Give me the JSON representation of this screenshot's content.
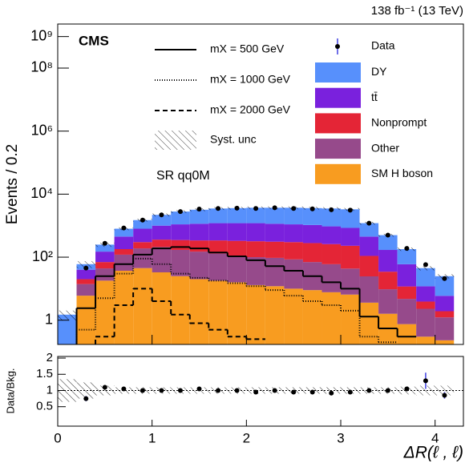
{
  "chart_data": {
    "type": "stacked_histogram",
    "cms_label": "CMS",
    "lumi_label": "138 fb⁻¹ (13 TeV)",
    "region_label": "SR qq0M",
    "x_label": "ΔR(ℓ , ℓ)",
    "y_label": "Events / 0.2",
    "ratio_y_label": "Data/Bkg.",
    "log_y": true,
    "bins": [
      0,
      0.2,
      0.4,
      0.6,
      0.8,
      1.0,
      1.2,
      1.4,
      1.6,
      1.8,
      2.0,
      2.2,
      2.4,
      2.6,
      2.8,
      3.0,
      3.2,
      3.4,
      3.6,
      3.8,
      4.0,
      4.2
    ],
    "xlim": [
      0,
      4.3
    ],
    "xticks": [
      0,
      1,
      2,
      3,
      4
    ],
    "ylim": [
      0.17,
      2500000000
    ],
    "yticks": [
      1,
      {
        "value": 100,
        "label": "10²"
      },
      {
        "value": 10000,
        "label": "10⁴"
      },
      {
        "value": 1000000,
        "label": "10⁶"
      },
      {
        "value": 100000000,
        "label": "10⁸"
      },
      {
        "value": 1000000000,
        "label": "10⁹"
      }
    ],
    "stack": [
      {
        "name": "SM H boson",
        "color": "#f89c20",
        "values": [
          0,
          6,
          18,
          37,
          45,
          33,
          25,
          20,
          18,
          16,
          13,
          12,
          10,
          9,
          7.7,
          6.5,
          3.6,
          1.6,
          0.75,
          0.3,
          0.23
        ]
      },
      {
        "name": "Other",
        "color": "#964a8b",
        "values": [
          0,
          8,
          26,
          83,
          145,
          177,
          145,
          130,
          112,
          90,
          87,
          83,
          75,
          61,
          52,
          37,
          21,
          8,
          4,
          2,
          1
        ]
      },
      {
        "name": "Nonprompt",
        "color": "#e42536",
        "values": [
          0,
          6,
          26,
          60,
          110,
          150,
          180,
          190,
          210,
          224,
          220,
          215,
          215,
          210,
          200,
          186,
          85,
          25,
          7,
          1.6,
          0.7
        ]
      },
      {
        "name": "tt̄",
        "color": "#7a21dd",
        "values": [
          0,
          20,
          80,
          270,
          500,
          640,
          750,
          810,
          860,
          870,
          880,
          840,
          800,
          770,
          690,
          620,
          340,
          135,
          48,
          8,
          4
        ]
      },
      {
        "name": "DY",
        "color": "#5790fc",
        "values": [
          1.5,
          20,
          100,
          350,
          700,
          1200,
          1700,
          2050,
          2300,
          2400,
          2500,
          2550,
          2600,
          2550,
          2550,
          2450,
          750,
          330,
          120,
          33,
          19
        ]
      }
    ],
    "signals": [
      {
        "name": "mX = 500 GeV",
        "dash": "none",
        "values": [
          null,
          2.4,
          25,
          60,
          120,
          190,
          210,
          190,
          140,
          106,
          80,
          52,
          37,
          25,
          16,
          10,
          1.3,
          0.55,
          0.3,
          null,
          null
        ]
      },
      {
        "name": "mX = 1000 GeV",
        "dash": "1,2",
        "values": [
          null,
          0.5,
          5,
          30,
          90,
          60,
          30,
          22,
          18,
          15,
          12,
          9,
          6,
          4,
          3,
          2,
          0.3,
          0.2,
          null,
          null,
          null
        ]
      },
      {
        "name": "mX = 2000 GeV",
        "dash": "6,4",
        "values": [
          null,
          null,
          0.3,
          3,
          10,
          4,
          1.5,
          0.8,
          0.5,
          0.3,
          0.25,
          null,
          null,
          null,
          null,
          null,
          null,
          null,
          null,
          null,
          null
        ]
      }
    ],
    "data": {
      "name": "Data",
      "color": "#000000",
      "values": [
        null,
        45,
        275,
        840,
        1500,
        2200,
        2800,
        3360,
        3500,
        3600,
        3500,
        3700,
        3500,
        3400,
        3200,
        3100,
        1200,
        500,
        190,
        58,
        21
      ]
    },
    "syst_unc": {
      "name": "Syst. unc",
      "values": [
        0.35,
        0.25,
        0.15,
        0.1,
        0.1,
        0.1,
        0.1,
        0.1,
        0.1,
        0.1,
        0.1,
        0.1,
        0.1,
        0.1,
        0.1,
        0.1,
        0.1,
        0.1,
        0.12,
        0.15,
        0.15
      ]
    },
    "ratio": {
      "values": [
        null,
        0.75,
        1.1,
        1.05,
        1.0,
        1.0,
        1.0,
        1.05,
        1.0,
        1.0,
        0.95,
        1.0,
        0.95,
        0.95,
        0.92,
        0.95,
        1.0,
        1.0,
        1.05,
        1.3,
        0.85
      ],
      "errors": [
        null,
        0.08,
        0.04,
        0.03,
        0.02,
        0.02,
        0.02,
        0.02,
        0.02,
        0.02,
        0.02,
        0.02,
        0.02,
        0.02,
        0.02,
        0.02,
        0.03,
        0.04,
        0.06,
        0.25,
        0.1
      ],
      "ylim": [
        -0.1,
        2.05
      ],
      "yticks": [
        0.5,
        1,
        1.5,
        2
      ]
    }
  }
}
